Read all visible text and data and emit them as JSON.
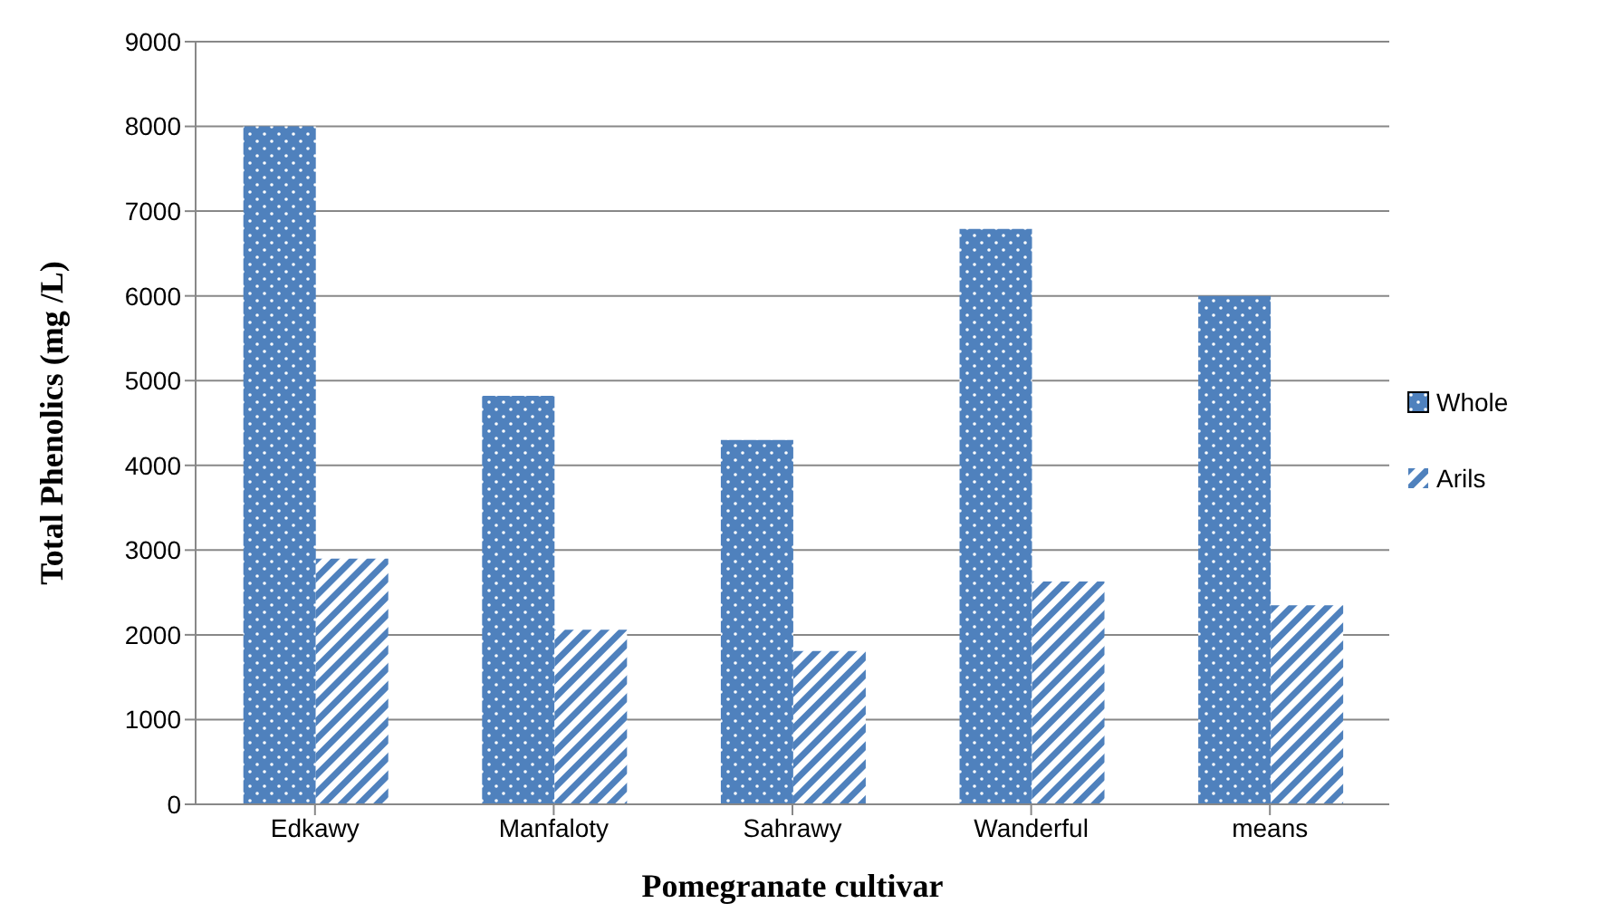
{
  "chart_data": {
    "type": "bar",
    "xlabel": "Pomegranate cultivar",
    "ylabel": "Total Phenolics (mg /L)",
    "categories": [
      "Edkawy",
      "Manfaloty",
      "Sahrawy",
      "Wanderful",
      "means"
    ],
    "series": [
      {
        "name": "Whole",
        "color": "#4f81bd",
        "values": [
          8000,
          4820,
          4300,
          6790,
          6000
        ]
      },
      {
        "name": "Arils",
        "color": "#4f81bd",
        "values": [
          2900,
          2060,
          1810,
          2630,
          2350
        ]
      }
    ],
    "ylim": [
      0,
      9000
    ],
    "yticks": [
      0,
      1000,
      2000,
      3000,
      4000,
      5000,
      6000,
      7000,
      8000,
      9000
    ],
    "grid": "y",
    "legend": "right"
  }
}
